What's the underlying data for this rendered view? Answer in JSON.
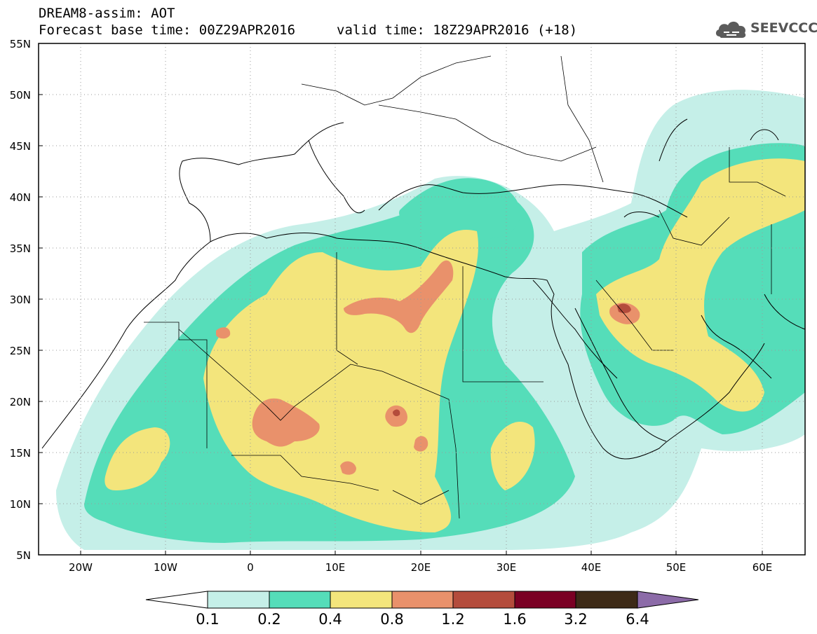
{
  "header": {
    "line1": "DREAM8-assim: AOT",
    "line2": "Forecast base time: 00Z29APR2016",
    "line3": "valid time: 18Z29APR2016 (+18)"
  },
  "logo": {
    "text": "SEEVCCC",
    "icon": "cloud-icon"
  },
  "map": {
    "lat_labels": [
      "55N",
      "50N",
      "45N",
      "40N",
      "35N",
      "30N",
      "25N",
      "20N",
      "15N",
      "10N",
      "5N"
    ],
    "lon_labels": [
      "20W",
      "10W",
      "0",
      "10E",
      "20E",
      "30E",
      "40E",
      "50E",
      "60E"
    ],
    "region": "North Africa, Europe and Middle East",
    "gridlines": "dotted"
  },
  "colorbar": {
    "labels": [
      "0.1",
      "0.2",
      "0.4",
      "0.8",
      "1.2",
      "1.6",
      "3.2",
      "6.4"
    ],
    "colors": [
      "#ffffff",
      "#c5efe8",
      "#55ddb9",
      "#f3e57c",
      "#e9916b",
      "#b44c3c",
      "#7a0024",
      "#3d2a17",
      "#8c6ba8"
    ]
  }
}
